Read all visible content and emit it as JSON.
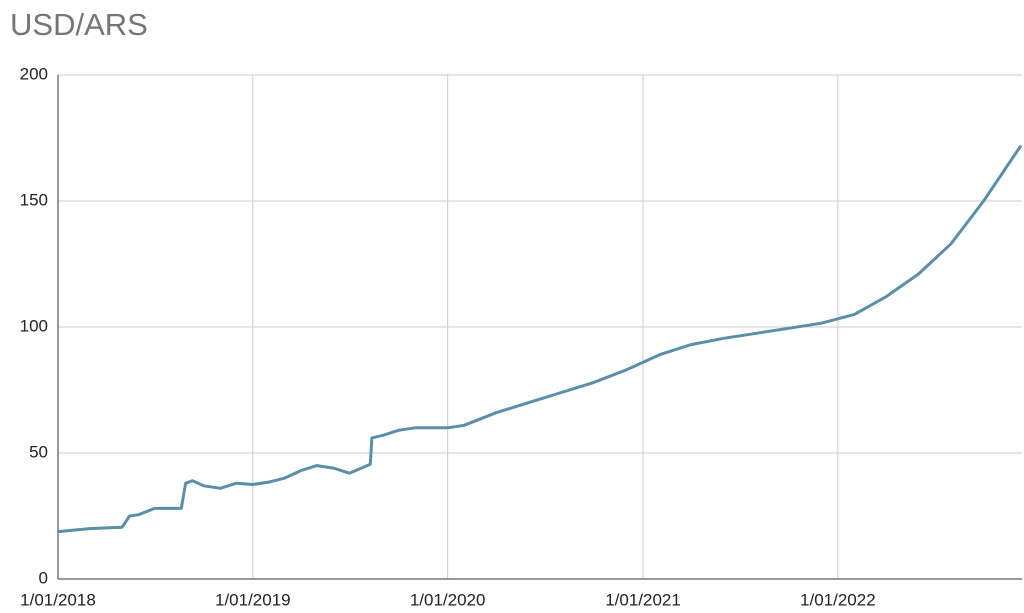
{
  "chart_data": {
    "type": "line",
    "title": "USD/ARS",
    "x": [
      "2018-01-01",
      "2018-03-01",
      "2018-05-01",
      "2018-05-15",
      "2018-06-01",
      "2018-07-01",
      "2018-08-20",
      "2018-08-28",
      "2018-09-10",
      "2018-10-01",
      "2018-11-01",
      "2018-12-01",
      "2019-01-01",
      "2019-02-01",
      "2019-03-01",
      "2019-04-01",
      "2019-05-01",
      "2019-06-01",
      "2019-07-01",
      "2019-08-09",
      "2019-08-12",
      "2019-09-01",
      "2019-10-01",
      "2019-11-01",
      "2019-12-01",
      "2020-01-01",
      "2020-02-01",
      "2020-04-01",
      "2020-06-01",
      "2020-08-01",
      "2020-10-01",
      "2020-12-01",
      "2021-02-01",
      "2021-04-01",
      "2021-06-01",
      "2021-08-01",
      "2021-10-01",
      "2021-12-01",
      "2022-02-01",
      "2022-04-01",
      "2022-06-01",
      "2022-08-01",
      "2022-10-01",
      "2022-12-10"
    ],
    "values": [
      18.8,
      20,
      20.5,
      25,
      25.5,
      28,
      28,
      38,
      39,
      37,
      36,
      38,
      37.5,
      38.5,
      40,
      43,
      45,
      44,
      42,
      45.5,
      56,
      57,
      59,
      60,
      60,
      60,
      61,
      66,
      70,
      74,
      78,
      83,
      89,
      93,
      95.5,
      97.5,
      99.5,
      101.5,
      105,
      112,
      121,
      133,
      150,
      172
    ],
    "color": "#5b8fa8",
    "xlim": [
      "2018-01-01",
      "2022-12-12"
    ],
    "xticks": [
      {
        "value": "2018-01-01",
        "label": "1/01/2018"
      },
      {
        "value": "2019-01-01",
        "label": "1/01/2019"
      },
      {
        "value": "2020-01-01",
        "label": "1/01/2020"
      },
      {
        "value": "2021-01-01",
        "label": "1/01/2021"
      },
      {
        "value": "2022-01-01",
        "label": "1/01/2022"
      }
    ],
    "ylim": [
      0,
      200
    ],
    "yticks": [
      0,
      50,
      100,
      150,
      200
    ],
    "grid": true
  }
}
